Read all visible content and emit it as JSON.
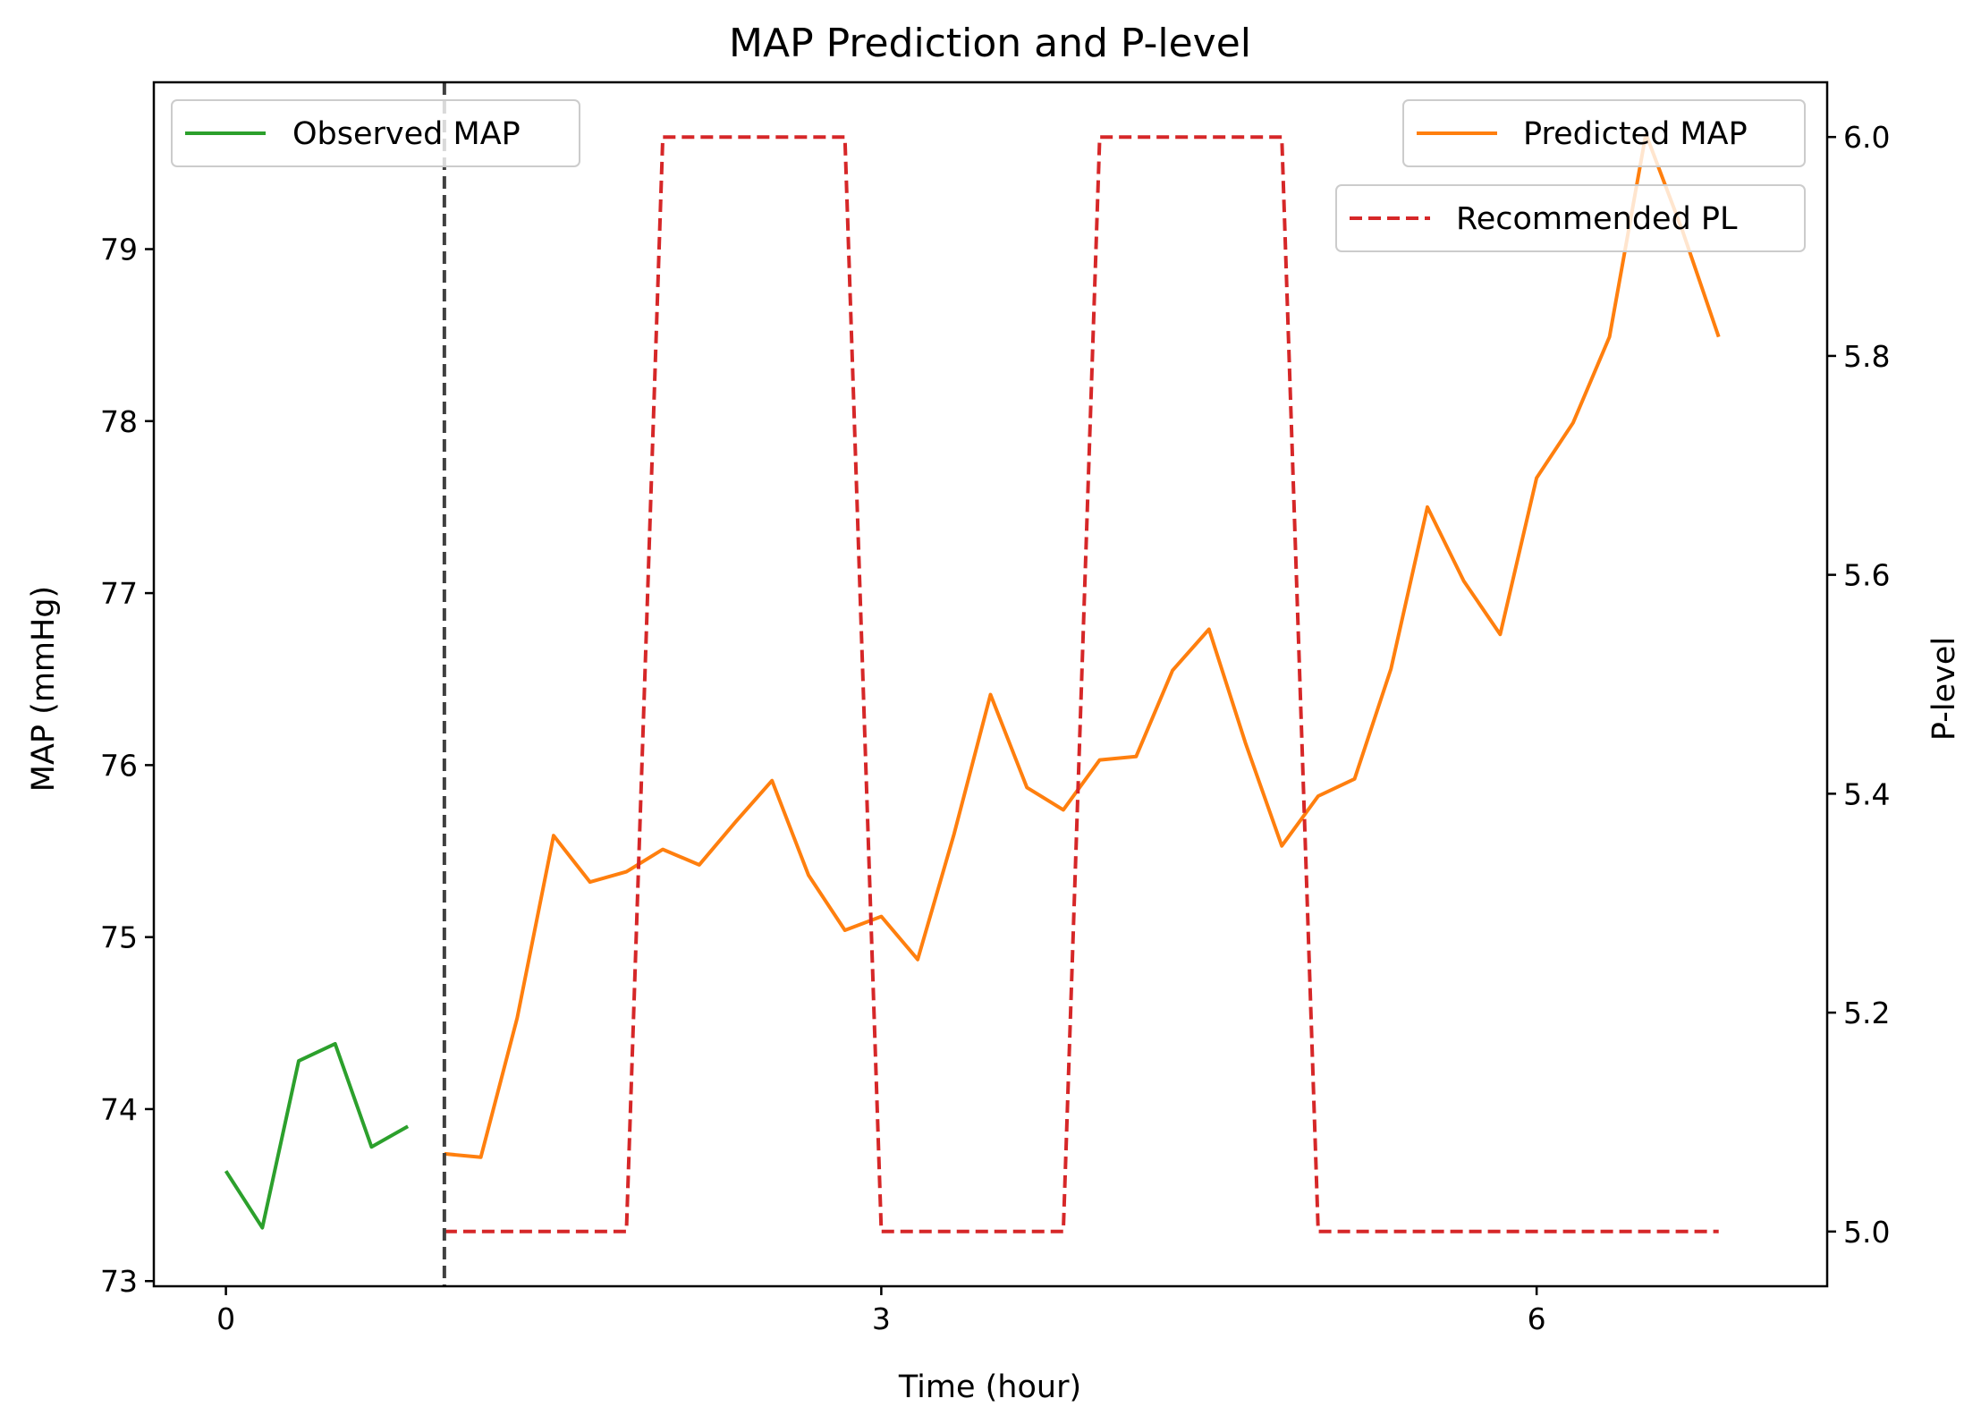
{
  "chart_data": {
    "type": "line",
    "title": "MAP Prediction and P-level",
    "xlabel": "Time (hour)",
    "ylabel_left": "MAP (mmHg)",
    "ylabel_right": "P-level",
    "xlim": [
      -0.33,
      7.33
    ],
    "ylim_left": [
      72.97,
      79.97
    ],
    "ylim_right": [
      4.95,
      6.05
    ],
    "x_ticks": [
      0,
      3,
      6
    ],
    "y_left_ticks": [
      73,
      74,
      75,
      76,
      77,
      78,
      79
    ],
    "y_right_ticks": [
      5.0,
      5.2,
      5.4,
      5.6,
      5.8,
      6.0
    ],
    "y_right_tick_labels": [
      "5.0",
      "5.2",
      "5.4",
      "5.6",
      "5.8",
      "6.0"
    ],
    "forecast_start": 1.0,
    "series": [
      {
        "name": "Observed MAP",
        "axis": "left",
        "color": "#2ca02c",
        "style": "solid",
        "x": [
          0,
          0.1667,
          0.3333,
          0.5,
          0.6667,
          0.8333
        ],
        "y": [
          73.64,
          73.31,
          74.28,
          74.38,
          73.78,
          73.9
        ]
      },
      {
        "name": "Predicted MAP",
        "axis": "left",
        "color": "#ff7f0e",
        "style": "solid",
        "x": [
          1.0,
          1.1667,
          1.3333,
          1.5,
          1.6667,
          1.8333,
          2.0,
          2.1667,
          2.3333,
          2.5,
          2.6667,
          2.8333,
          3.0,
          3.1667,
          3.3333,
          3.5,
          3.6667,
          3.8333,
          4.0,
          4.1667,
          4.3333,
          4.5,
          4.6667,
          4.8333,
          5.0,
          5.1667,
          5.3333,
          5.5,
          5.6667,
          5.8333,
          6.0,
          6.1667,
          6.3333,
          6.5,
          6.6667,
          6.8333
        ],
        "y": [
          73.74,
          73.72,
          74.53,
          75.59,
          75.32,
          75.38,
          75.51,
          75.42,
          75.67,
          75.91,
          75.36,
          75.04,
          75.12,
          74.87,
          75.6,
          76.41,
          75.87,
          75.74,
          76.03,
          76.05,
          76.55,
          76.79,
          76.13,
          75.53,
          75.82,
          75.92,
          76.56,
          77.5,
          77.07,
          76.76,
          77.67,
          77.99,
          78.49,
          79.67,
          79.11,
          78.49
        ]
      },
      {
        "name": "Recommended PL",
        "axis": "right",
        "color": "#d62728",
        "style": "dashed",
        "x": [
          1.0,
          1.1667,
          1.3333,
          1.5,
          1.6667,
          1.8333,
          2.0,
          2.1667,
          2.3333,
          2.5,
          2.6667,
          2.8333,
          3.0,
          3.1667,
          3.3333,
          3.5,
          3.6667,
          3.8333,
          4.0,
          4.1667,
          4.3333,
          4.5,
          4.6667,
          4.8333,
          5.0,
          5.1667,
          5.3333,
          5.5,
          5.6667,
          5.8333,
          6.0,
          6.1667,
          6.3333,
          6.5,
          6.6667,
          6.8333
        ],
        "y": [
          5.0,
          5.0,
          5.0,
          5.0,
          5.0,
          5.0,
          6.0,
          6.0,
          6.0,
          6.0,
          6.0,
          6.0,
          5.0,
          5.0,
          5.0,
          5.0,
          5.0,
          5.0,
          6.0,
          6.0,
          6.0,
          6.0,
          6.0,
          6.0,
          5.0,
          5.0,
          5.0,
          5.0,
          5.0,
          5.0,
          5.0,
          5.0,
          5.0,
          5.0,
          5.0,
          5.0
        ]
      }
    ],
    "legends": [
      {
        "placement": "upper-left",
        "entries": [
          "Observed MAP"
        ]
      },
      {
        "placement": "upper-right",
        "entries": [
          "Predicted MAP"
        ]
      },
      {
        "placement": "upper-right-below",
        "entries": [
          "Recommended PL"
        ]
      }
    ],
    "grid": false
  }
}
